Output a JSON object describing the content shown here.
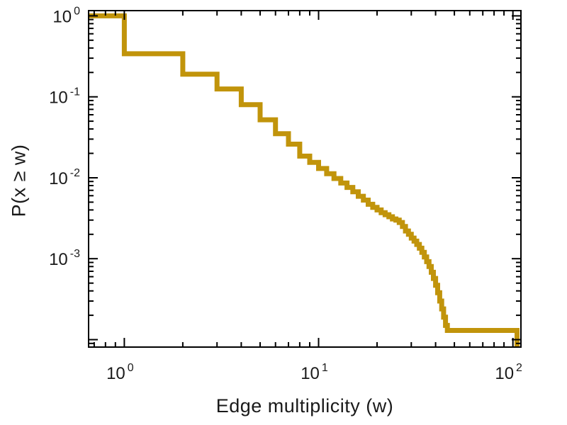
{
  "chart_data": {
    "type": "line",
    "subtype": "step-ccdf",
    "title": "",
    "xlabel": "Edge multiplicity (w)",
    "ylabel": "P(x ≥ w)",
    "xscale": "log",
    "yscale": "log",
    "xlim": [
      0.655,
      110
    ],
    "ylim": [
      8.1e-05,
      1.16
    ],
    "grid": false,
    "legend": "none",
    "line_color": "#C1940B",
    "line_width": 7,
    "frame_color": "#000000",
    "background": "#ffffff",
    "start_level": 1.0,
    "x_end": 105,
    "end_drop": true,
    "x": [
      1,
      2,
      3,
      4,
      5,
      6,
      7,
      8,
      9,
      10,
      11,
      12,
      13,
      14,
      15,
      16,
      17,
      18,
      19,
      20,
      21,
      22,
      23,
      24,
      25,
      26,
      27,
      28,
      29,
      30,
      31,
      32,
      33,
      34,
      35,
      36,
      37,
      38,
      39,
      40,
      41,
      42,
      43,
      44,
      45,
      46
    ],
    "y": [
      0.34,
      0.19,
      0.125,
      0.08,
      0.052,
      0.035,
      0.026,
      0.0185,
      0.0155,
      0.013,
      0.0112,
      0.0098,
      0.0086,
      0.0076,
      0.0067,
      0.0059,
      0.0053,
      0.0047,
      0.0043,
      0.004,
      0.0037,
      0.0035,
      0.0033,
      0.0031,
      0.003,
      0.0028,
      0.0025,
      0.0022,
      0.002,
      0.0018,
      0.00165,
      0.0015,
      0.00135,
      0.0012,
      0.00105,
      0.00092,
      0.0008,
      0.00068,
      0.00057,
      0.00047,
      0.00038,
      0.0003,
      0.00024,
      0.00019,
      0.00015,
      0.00013
    ],
    "x_ticks": [
      {
        "v": 1,
        "base": "10",
        "exp": "0"
      },
      {
        "v": 10,
        "base": "10",
        "exp": "1"
      },
      {
        "v": 100,
        "base": "10",
        "exp": "2"
      }
    ],
    "y_ticks": [
      {
        "v": 1,
        "base": "10",
        "exp": "0"
      },
      {
        "v": 0.1,
        "base": "10",
        "exp": "-1"
      },
      {
        "v": 0.01,
        "base": "10",
        "exp": "-2"
      },
      {
        "v": 0.001,
        "base": "10",
        "exp": "-3"
      }
    ]
  }
}
